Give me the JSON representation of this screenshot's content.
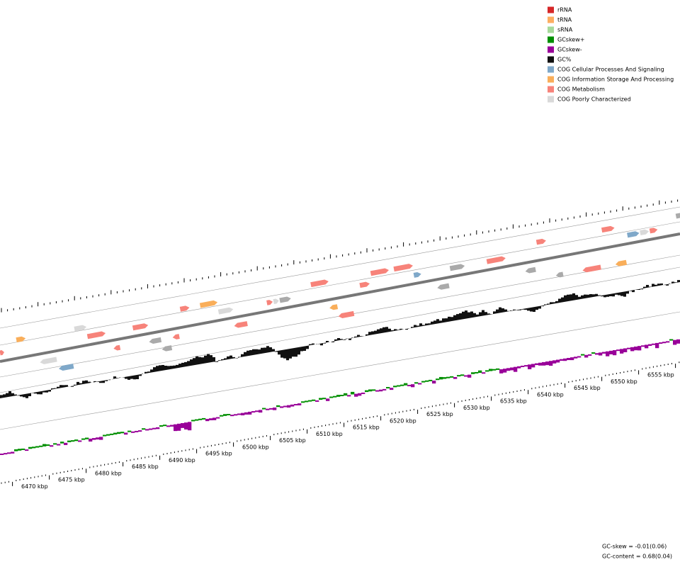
{
  "legend": [
    {
      "label": "rRNA",
      "color": "#d62728"
    },
    {
      "label": "tRNA",
      "color": "#fdae61"
    },
    {
      "label": "sRNA",
      "color": "#a6d99a"
    },
    {
      "label": "GCskew+",
      "color": "#008f00"
    },
    {
      "label": "GCskew-",
      "color": "#990099"
    },
    {
      "label": "GC%",
      "color": "#111111"
    },
    {
      "label": "COG Cellular Processes And Signaling",
      "color": "#7fa8c9"
    },
    {
      "label": "COG Information Storage And Processing",
      "color": "#f9ae5a"
    },
    {
      "label": "COG Metabolism",
      "color": "#f7837a"
    },
    {
      "label": "COG Poorly Characterized",
      "color": "#d9d9d9"
    }
  ],
  "scale_labels": [
    "6470 kbp",
    "6475 kbp",
    "6480 kbp",
    "6485 kbp",
    "6490 kbp",
    "6495 kbp",
    "6500 kbp",
    "6505 kbp",
    "6510 kbp",
    "6515 kbp",
    "6520 kbp",
    "6525 kbp",
    "6530 kbp",
    "6535 kbp",
    "6540 kbp",
    "6545 kbp",
    "6550 kbp",
    "6555 kbp"
  ],
  "footer": [
    "GC-skew = -0.01(0.06)",
    "GC-content = 0.68(0.04)"
  ]
}
